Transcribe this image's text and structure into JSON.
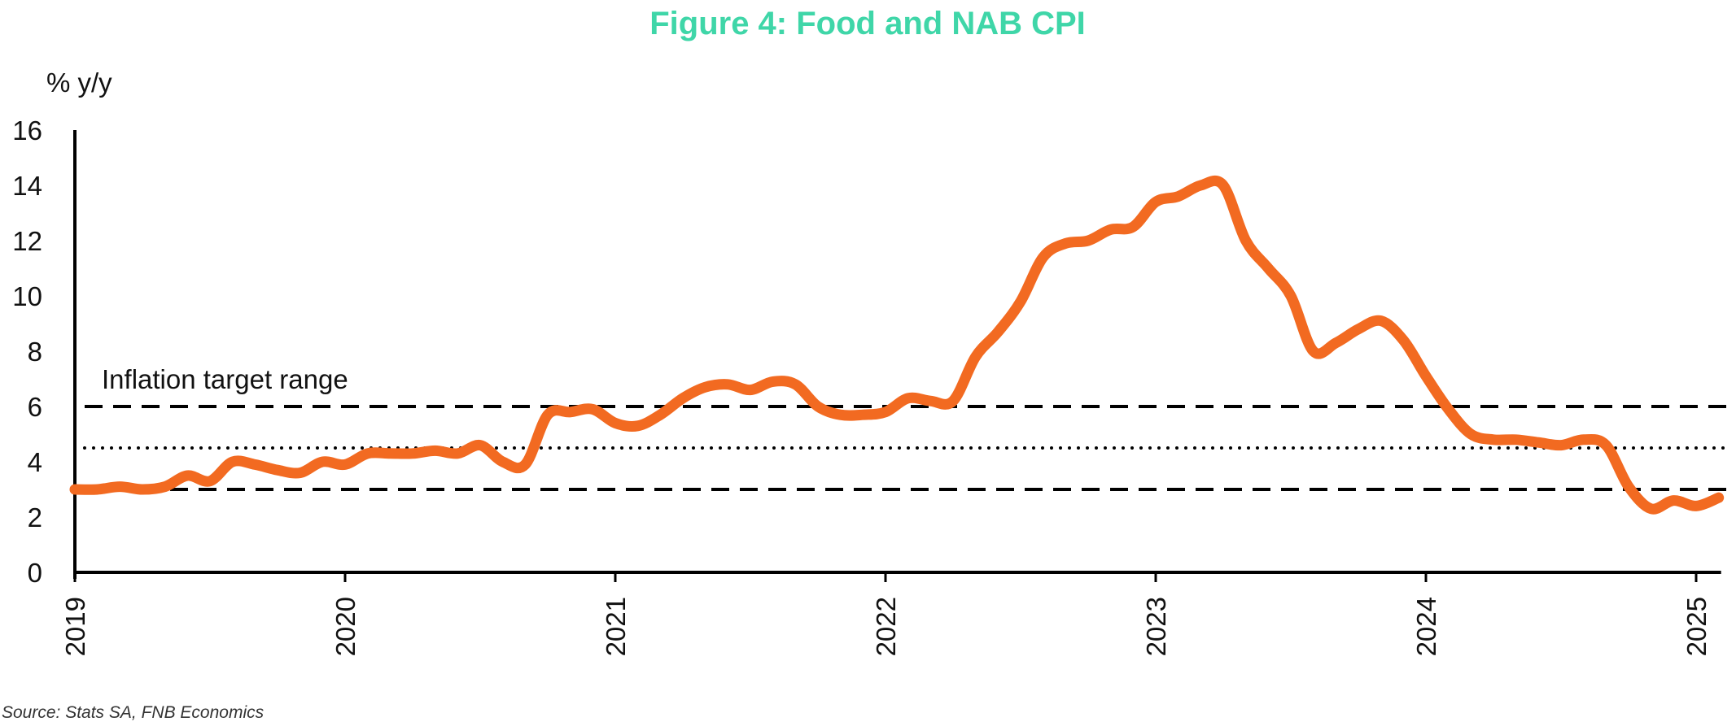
{
  "chart_data": {
    "type": "line",
    "title": "Figure 4: Food and NAB CPI",
    "ylabel": "% y/y",
    "xlabel": "",
    "ylim": [
      0,
      16
    ],
    "yticks": [
      "0",
      "2",
      "4",
      "6",
      "8",
      "10",
      "12",
      "14",
      "16"
    ],
    "xticks": [
      "2019",
      "2020",
      "2021",
      "2022",
      "2023",
      "2024",
      "2025"
    ],
    "annotation": "Inflation target range",
    "source": "Source: Stats SA, FNB Economics",
    "grid": false,
    "target_range": {
      "lower": 3,
      "upper": 6,
      "midpoint": 4.5
    },
    "colors": {
      "series": "#f26a21",
      "title": "#3fd6a8",
      "axis": "#000000"
    },
    "series": [
      {
        "x": [
          "2019-01",
          "2019-02",
          "2019-03",
          "2019-04",
          "2019-05",
          "2019-06",
          "2019-07",
          "2019-08",
          "2019-09",
          "2019-10",
          "2019-11",
          "2019-12",
          "2020-01",
          "2020-02",
          "2020-03",
          "2020-04",
          "2020-05",
          "2020-06",
          "2020-07",
          "2020-08",
          "2020-09",
          "2020-10",
          "2020-11",
          "2020-12",
          "2021-01",
          "2021-02",
          "2021-03",
          "2021-04",
          "2021-05",
          "2021-06",
          "2021-07",
          "2021-08",
          "2021-09",
          "2021-10",
          "2021-11",
          "2021-12",
          "2022-01",
          "2022-02",
          "2022-03",
          "2022-04",
          "2022-05",
          "2022-06",
          "2022-07",
          "2022-08",
          "2022-09",
          "2022-10",
          "2022-11",
          "2022-12",
          "2023-01",
          "2023-02",
          "2023-03",
          "2023-04",
          "2023-05",
          "2023-06",
          "2023-07",
          "2023-08",
          "2023-09",
          "2023-10",
          "2023-11",
          "2023-12",
          "2024-01",
          "2024-02",
          "2024-03",
          "2024-04",
          "2024-05",
          "2024-06",
          "2024-07",
          "2024-08",
          "2024-09",
          "2024-10",
          "2024-11",
          "2024-12",
          "2025-01",
          "2025-02"
        ],
        "values": [
          3.0,
          3.0,
          3.1,
          3.0,
          3.1,
          3.5,
          3.3,
          4.0,
          3.9,
          3.7,
          3.6,
          4.0,
          3.9,
          4.3,
          4.3,
          4.3,
          4.4,
          4.3,
          4.6,
          4.0,
          3.9,
          5.7,
          5.8,
          5.9,
          5.4,
          5.3,
          5.7,
          6.3,
          6.7,
          6.8,
          6.6,
          6.9,
          6.8,
          6.0,
          5.7,
          5.7,
          5.8,
          6.3,
          6.2,
          6.2,
          7.8,
          8.7,
          9.8,
          11.4,
          11.9,
          12.0,
          12.4,
          12.5,
          13.4,
          13.6,
          14.0,
          14.0,
          12.0,
          11.0,
          10.0,
          8.0,
          8.3,
          8.8,
          9.1,
          8.4,
          7.1,
          5.9,
          5.0,
          4.8,
          4.8,
          4.7,
          4.6,
          4.8,
          4.6,
          3.1,
          2.3,
          2.6,
          2.4,
          2.7
        ]
      }
    ]
  }
}
